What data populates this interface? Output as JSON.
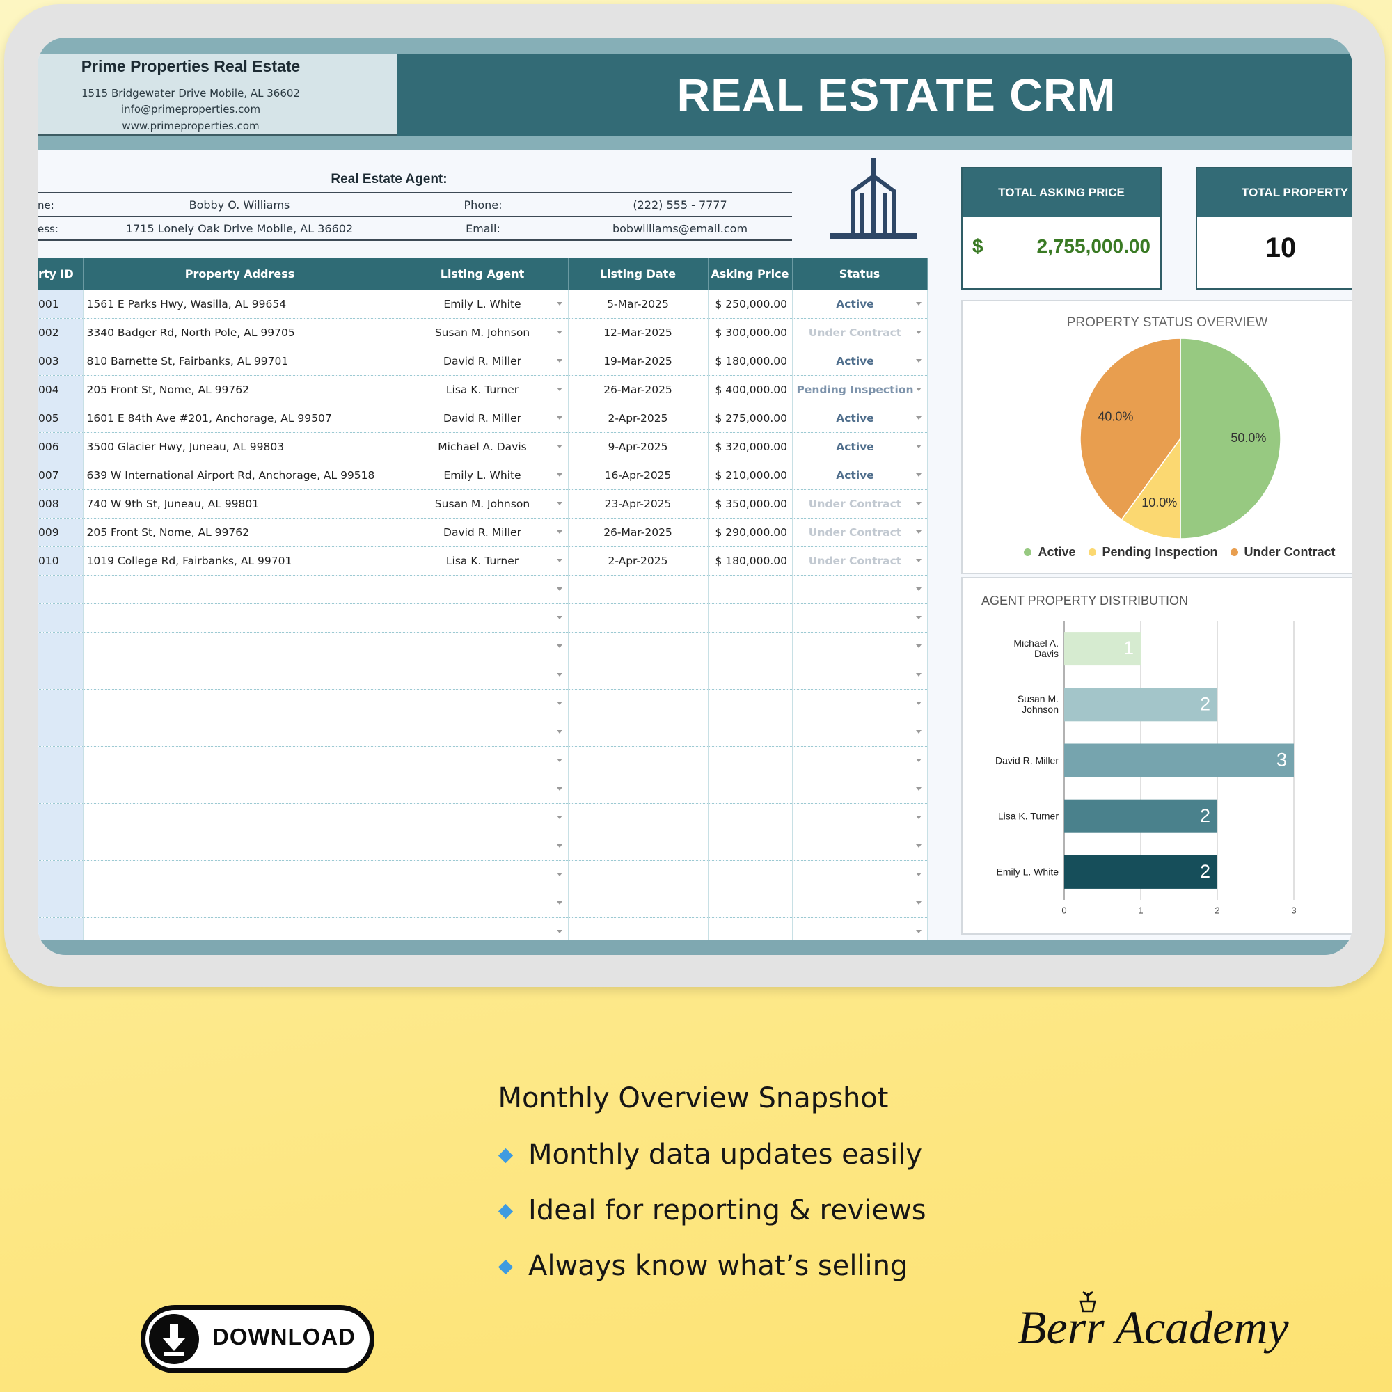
{
  "header": {
    "company": "Prime Properties Real Estate",
    "address": "1515 Bridgewater Drive Mobile, AL 36602",
    "email": "info@primeproperties.com",
    "website": "www.primeproperties.com",
    "title": "REAL ESTATE CRM"
  },
  "agent": {
    "heading": "Real Estate Agent:",
    "name_label": "ne:",
    "name": "Bobby O. Williams",
    "phone_label": "Phone:",
    "phone": "(222) 555 - 7777",
    "address_label": "ess:",
    "address": "1715 Lonely Oak Drive Mobile, AL 36602",
    "email_label": "Email:",
    "email": "bobwilliams@email.com"
  },
  "table": {
    "headers": [
      "rty ID",
      "Property Address",
      "Listing Agent",
      "Listing Date",
      "Asking Price",
      "Status"
    ],
    "rows": [
      [
        "001",
        "1561 E Parks Hwy, Wasilla, AL 99654",
        "Emily L. White",
        "5-Mar-2025",
        "$ 250,000.00",
        "Active"
      ],
      [
        "002",
        "3340 Badger Rd, North Pole, AL 99705",
        "Susan M. Johnson",
        "12-Mar-2025",
        "$ 300,000.00",
        "Under Contract"
      ],
      [
        "003",
        "810 Barnette St, Fairbanks, AL 99701",
        "David R. Miller",
        "19-Mar-2025",
        "$ 180,000.00",
        "Active"
      ],
      [
        "004",
        "205 Front St, Nome, AL 99762",
        "Lisa K. Turner",
        "26-Mar-2025",
        "$ 400,000.00",
        "Pending Inspection"
      ],
      [
        "005",
        "1601 E 84th Ave #201, Anchorage, AL 99507",
        "David R. Miller",
        "2-Apr-2025",
        "$ 275,000.00",
        "Active"
      ],
      [
        "006",
        "3500 Glacier Hwy, Juneau, AL 99803",
        "Michael A. Davis",
        "9-Apr-2025",
        "$ 320,000.00",
        "Active"
      ],
      [
        "007",
        "639 W International Airport Rd, Anchorage, AL 99518",
        "Emily L. White",
        "16-Apr-2025",
        "$ 210,000.00",
        "Active"
      ],
      [
        "008",
        "740 W 9th St, Juneau, AL 99801",
        "Susan M. Johnson",
        "23-Apr-2025",
        "$ 350,000.00",
        "Under Contract"
      ],
      [
        "009",
        "205 Front St, Nome, AL 99762",
        "David R. Miller",
        "26-Mar-2025",
        "$ 290,000.00",
        "Under Contract"
      ],
      [
        "010",
        "1019 College Rd, Fairbanks, AL 99701",
        "Lisa K. Turner",
        "2-Apr-2025",
        "$ 180,000.00",
        "Under Contract"
      ]
    ],
    "status_colors": {
      "Active": "#4f6e8c",
      "Under Contract": "#c2c9d1",
      "Pending Inspection": "#7d93ab"
    }
  },
  "kpis": [
    {
      "label": "TOTAL ASKING PRICE",
      "currency": "$",
      "value": "2,755,000.00"
    },
    {
      "label": "TOTAL PROPERTY",
      "value": 10
    }
  ],
  "chart_data": [
    {
      "type": "pie",
      "title": "PROPERTY STATUS OVERVIEW",
      "categories": [
        "Active",
        "Pending Inspection",
        "Under Contract"
      ],
      "values": [
        50,
        10,
        40
      ],
      "value_labels": [
        "50.0%",
        "10.0%",
        "40.0%"
      ],
      "colors": [
        "#97c981",
        "#fbd871",
        "#e89e4f"
      ],
      "legend": "bottom"
    },
    {
      "type": "bar",
      "orientation": "horizontal",
      "title": "AGENT PROPERTY DISTRIBUTION",
      "categories": [
        "Michael A. Davis",
        "Susan M. Johnson",
        "David R. Miller",
        "Lisa K. Turner",
        "Emily L. White"
      ],
      "values": [
        1,
        2,
        3,
        2,
        2
      ],
      "colors": [
        "#d6ebd0",
        "#a3c5c9",
        "#76a4ae",
        "#4a818c",
        "#164e5a"
      ],
      "xlim": [
        0,
        3.6
      ],
      "xticks": [
        0,
        1,
        2,
        3
      ],
      "grid": true
    }
  ],
  "promo": {
    "heading": "Monthly Overview Snapshot",
    "bullets": [
      "Monthly data updates easily",
      "Ideal for reporting & reviews",
      "Always know what’s selling"
    ]
  },
  "download": "DOWNLOAD",
  "brand": "Berr Academy"
}
